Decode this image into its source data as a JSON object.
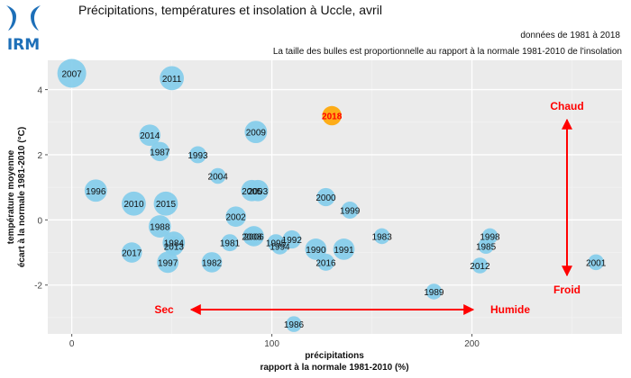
{
  "logo": {
    "text": "IRM"
  },
  "title": "Précipitations, températures et insolation à Uccle, avril",
  "subtitle_line1": "données de 1981 à 2018",
  "subtitle_line2": "La taille des bulles est proportionnelle au rapport à la normale 1981-2010 de l'insolation",
  "colors": {
    "panel_bg": "#ebebeb",
    "grid_major": "#ffffff",
    "grid_minor": "#f3f3f3",
    "bubble": "#87ceeb",
    "highlight_bubble": "#ffa500",
    "highlight_text": "#ff0000",
    "arrow": "#ff0000",
    "logo_blue": "#1d6fb8"
  },
  "annotations": {
    "chaud": "Chaud",
    "froid": "Froid",
    "sec": "Sec",
    "humide": "Humide"
  },
  "chart_data": {
    "type": "scatter",
    "xlabel_line1": "précipitations",
    "xlabel_line2": "rapport à la normale 1981-2010 (%)",
    "ylabel_line1": "température moyenne",
    "ylabel_line2": "écart à la normale 1981-2010 (°C)",
    "xlim": [
      -12,
      275
    ],
    "ylim": [
      -3.5,
      4.9
    ],
    "x_ticks": [
      0,
      100,
      200
    ],
    "y_ticks": [
      -2,
      0,
      2,
      4
    ],
    "grid": true,
    "highlight_year": "2018",
    "points": [
      {
        "year": "2007",
        "x": 0,
        "y": 4.5,
        "size": 1.0
      },
      {
        "year": "2011",
        "x": 50,
        "y": 4.35,
        "size": 0.7
      },
      {
        "year": "2018",
        "x": 130,
        "y": 3.2,
        "size": 0.45
      },
      {
        "year": "2014",
        "x": 39,
        "y": 2.6,
        "size": 0.55
      },
      {
        "year": "2009",
        "x": 92,
        "y": 2.7,
        "size": 0.6
      },
      {
        "year": "1987",
        "x": 44,
        "y": 2.1,
        "size": 0.45
      },
      {
        "year": "1993",
        "x": 63,
        "y": 2.0,
        "size": 0.35
      },
      {
        "year": "2004",
        "x": 73,
        "y": 1.35,
        "size": 0.3
      },
      {
        "year": "1996",
        "x": 12,
        "y": 0.9,
        "size": 0.6
      },
      {
        "year": "2010",
        "x": 31,
        "y": 0.5,
        "size": 0.7
      },
      {
        "year": "2015",
        "x": 47,
        "y": 0.5,
        "size": 0.7
      },
      {
        "year": "2005",
        "x": 90,
        "y": 0.9,
        "size": 0.55
      },
      {
        "year": "2003",
        "x": 93,
        "y": 0.9,
        "size": 0.55
      },
      {
        "year": "2000",
        "x": 127,
        "y": 0.7,
        "size": 0.4
      },
      {
        "year": "1999",
        "x": 139,
        "y": 0.3,
        "size": 0.35
      },
      {
        "year": "2002",
        "x": 82,
        "y": 0.1,
        "size": 0.5
      },
      {
        "year": "1988",
        "x": 44,
        "y": -0.2,
        "size": 0.6
      },
      {
        "year": "2006",
        "x": 91,
        "y": -0.5,
        "size": 0.5
      },
      {
        "year": "2008",
        "x": 90,
        "y": -0.5,
        "size": 0.4
      },
      {
        "year": "1984",
        "x": 51,
        "y": -0.7,
        "size": 0.6
      },
      {
        "year": "2013",
        "x": 51,
        "y": -0.8,
        "size": 0.45
      },
      {
        "year": "1981",
        "x": 79,
        "y": -0.7,
        "size": 0.35
      },
      {
        "year": "1995",
        "x": 102,
        "y": -0.7,
        "size": 0.35
      },
      {
        "year": "1994",
        "x": 104,
        "y": -0.8,
        "size": 0.35
      },
      {
        "year": "1992",
        "x": 110,
        "y": -0.6,
        "size": 0.4
      },
      {
        "year": "1990",
        "x": 122,
        "y": -0.9,
        "size": 0.55
      },
      {
        "year": "1991",
        "x": 136,
        "y": -0.9,
        "size": 0.55
      },
      {
        "year": "1983",
        "x": 155,
        "y": -0.5,
        "size": 0.3
      },
      {
        "year": "1998",
        "x": 209,
        "y": -0.5,
        "size": 0.3
      },
      {
        "year": "1985",
        "x": 207,
        "y": -0.8,
        "size": 0.3
      },
      {
        "year": "2017",
        "x": 30,
        "y": -1.0,
        "size": 0.5
      },
      {
        "year": "1997",
        "x": 48,
        "y": -1.3,
        "size": 0.55
      },
      {
        "year": "1982",
        "x": 70,
        "y": -1.3,
        "size": 0.5
      },
      {
        "year": "2016",
        "x": 127,
        "y": -1.3,
        "size": 0.35
      },
      {
        "year": "2012",
        "x": 204,
        "y": -1.4,
        "size": 0.3
      },
      {
        "year": "2001",
        "x": 262,
        "y": -1.3,
        "size": 0.3
      },
      {
        "year": "1989",
        "x": 181,
        "y": -2.2,
        "size": 0.3
      },
      {
        "year": "1986",
        "x": 111,
        "y": -3.2,
        "size": 0.3
      }
    ]
  }
}
